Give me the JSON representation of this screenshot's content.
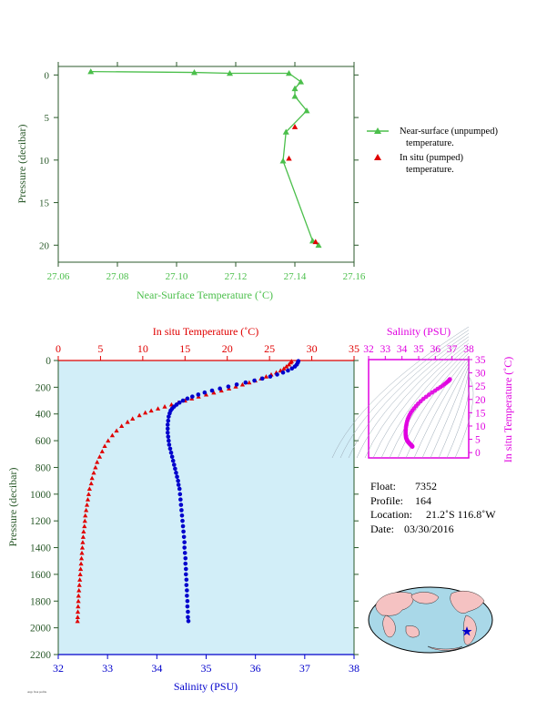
{
  "colors": {
    "green": "#4bbf4b",
    "axis_green": "#2b5a2b",
    "red": "#e00000",
    "blue": "#0000cc",
    "magenta": "#e000e0",
    "panel_bg": "#d2eef8"
  },
  "chart_data": [
    {
      "type": "line",
      "xlabel": "Near-Surface Temperature (˚C)",
      "ylabel": "Pressure (decibar)",
      "xlim": [
        27.06,
        27.16
      ],
      "ylim": [
        22,
        -1
      ],
      "xticks": [
        "27.06",
        "27.08",
        "27.10",
        "27.12",
        "27.14",
        "27.16"
      ],
      "yticks": [
        "0",
        "5",
        "10",
        "15",
        "20"
      ],
      "series": [
        {
          "name": "Near-surface (unpumped) temperature.",
          "marker": "triangle",
          "points": [
            [
              27.071,
              -0.4
            ],
            [
              27.106,
              -0.3
            ],
            [
              27.118,
              -0.2
            ],
            [
              27.138,
              -0.2
            ],
            [
              27.142,
              0.8
            ],
            [
              27.14,
              1.6
            ],
            [
              27.14,
              2.5
            ],
            [
              27.144,
              4.2
            ],
            [
              27.137,
              6.7
            ],
            [
              27.136,
              10.1
            ],
            [
              27.146,
              19.5
            ],
            [
              27.148,
              20.0
            ]
          ]
        },
        {
          "name": "In situ (pumped) temperature.",
          "marker": "triangle",
          "points": [
            [
              27.14,
              6.1
            ],
            [
              27.138,
              9.8
            ],
            [
              27.147,
              19.6
            ]
          ]
        }
      ]
    },
    {
      "type": "scatter",
      "title_top": "In situ Temperature (˚C)",
      "xlabel": "Salinity (PSU)",
      "ylabel": "Pressure (decibar)",
      "temp_lim": [
        0,
        35
      ],
      "sal_lim": [
        32,
        38
      ],
      "ylim": [
        0,
        2200
      ],
      "temp_ticks": [
        "0",
        "5",
        "10",
        "15",
        "20",
        "25",
        "30",
        "35"
      ],
      "sal_ticks": [
        "32",
        "33",
        "34",
        "35",
        "36",
        "37",
        "38"
      ],
      "pressure_ticks": [
        "0",
        "200",
        "400",
        "600",
        "800",
        "1000",
        "1200",
        "1400",
        "1600",
        "1800",
        "2000",
        "2200"
      ],
      "temperature": {
        "name": "In situ Temperature",
        "points": [
          [
            27.6,
            5
          ],
          [
            27.5,
            15
          ],
          [
            27.3,
            30
          ],
          [
            27.0,
            45
          ],
          [
            26.7,
            60
          ],
          [
            26.3,
            75
          ],
          [
            25.8,
            90
          ],
          [
            25.2,
            105
          ],
          [
            24.6,
            120
          ],
          [
            24.0,
            135
          ],
          [
            23.3,
            150
          ],
          [
            22.6,
            165
          ],
          [
            21.8,
            180
          ],
          [
            21.0,
            195
          ],
          [
            20.2,
            210
          ],
          [
            19.3,
            225
          ],
          [
            18.4,
            240
          ],
          [
            17.5,
            255
          ],
          [
            16.6,
            270
          ],
          [
            15.8,
            285
          ],
          [
            15.0,
            300
          ],
          [
            14.2,
            315
          ],
          [
            13.4,
            330
          ],
          [
            12.6,
            345
          ],
          [
            11.8,
            360
          ],
          [
            11.0,
            375
          ],
          [
            10.3,
            390
          ],
          [
            9.6,
            410
          ],
          [
            8.8,
            435
          ],
          [
            8.2,
            460
          ],
          [
            7.5,
            490
          ],
          [
            6.9,
            525
          ],
          [
            6.4,
            560
          ],
          [
            5.9,
            600
          ],
          [
            5.5,
            640
          ],
          [
            5.2,
            680
          ],
          [
            4.9,
            720
          ],
          [
            4.6,
            760
          ],
          [
            4.4,
            800
          ],
          [
            4.2,
            840
          ],
          [
            4.0,
            880
          ],
          [
            3.9,
            920
          ],
          [
            3.7,
            960
          ],
          [
            3.6,
            1000
          ],
          [
            3.5,
            1040
          ],
          [
            3.4,
            1080
          ],
          [
            3.3,
            1120
          ],
          [
            3.2,
            1160
          ],
          [
            3.15,
            1200
          ],
          [
            3.1,
            1240
          ],
          [
            3.0,
            1280
          ],
          [
            2.95,
            1320
          ],
          [
            2.9,
            1360
          ],
          [
            2.85,
            1400
          ],
          [
            2.8,
            1440
          ],
          [
            2.75,
            1480
          ],
          [
            2.7,
            1520
          ],
          [
            2.65,
            1560
          ],
          [
            2.6,
            1600
          ],
          [
            2.55,
            1640
          ],
          [
            2.5,
            1680
          ],
          [
            2.45,
            1720
          ],
          [
            2.4,
            1760
          ],
          [
            2.38,
            1800
          ],
          [
            2.35,
            1840
          ],
          [
            2.32,
            1880
          ],
          [
            2.3,
            1920
          ],
          [
            2.28,
            1950
          ]
        ]
      },
      "salinity": {
        "name": "Salinity",
        "points": [
          [
            36.87,
            5
          ],
          [
            36.86,
            15
          ],
          [
            36.84,
            30
          ],
          [
            36.8,
            45
          ],
          [
            36.74,
            60
          ],
          [
            36.66,
            75
          ],
          [
            36.56,
            90
          ],
          [
            36.44,
            105
          ],
          [
            36.3,
            120
          ],
          [
            36.14,
            135
          ],
          [
            35.98,
            150
          ],
          [
            35.8,
            165
          ],
          [
            35.62,
            180
          ],
          [
            35.45,
            195
          ],
          [
            35.28,
            210
          ],
          [
            35.12,
            225
          ],
          [
            34.97,
            240
          ],
          [
            34.84,
            255
          ],
          [
            34.72,
            270
          ],
          [
            34.62,
            285
          ],
          [
            34.53,
            300
          ],
          [
            34.46,
            315
          ],
          [
            34.4,
            330
          ],
          [
            34.35,
            345
          ],
          [
            34.31,
            360
          ],
          [
            34.28,
            375
          ],
          [
            34.26,
            395
          ],
          [
            34.24,
            420
          ],
          [
            34.23,
            450
          ],
          [
            34.22,
            480
          ],
          [
            34.22,
            510
          ],
          [
            34.22,
            540
          ],
          [
            34.23,
            570
          ],
          [
            34.24,
            600
          ],
          [
            34.25,
            630
          ],
          [
            34.27,
            660
          ],
          [
            34.29,
            690
          ],
          [
            34.31,
            720
          ],
          [
            34.33,
            750
          ],
          [
            34.35,
            780
          ],
          [
            34.37,
            810
          ],
          [
            34.39,
            840
          ],
          [
            34.41,
            870
          ],
          [
            34.43,
            900
          ],
          [
            34.44,
            930
          ],
          [
            34.46,
            960
          ],
          [
            34.47,
            1000
          ],
          [
            34.48,
            1040
          ],
          [
            34.49,
            1080
          ],
          [
            34.5,
            1120
          ],
          [
            34.51,
            1160
          ],
          [
            34.52,
            1200
          ],
          [
            34.53,
            1240
          ],
          [
            34.54,
            1280
          ],
          [
            34.55,
            1320
          ],
          [
            34.56,
            1360
          ],
          [
            34.56,
            1400
          ],
          [
            34.57,
            1440
          ],
          [
            34.58,
            1480
          ],
          [
            34.58,
            1520
          ],
          [
            34.59,
            1560
          ],
          [
            34.59,
            1600
          ],
          [
            34.6,
            1640
          ],
          [
            34.6,
            1680
          ],
          [
            34.61,
            1720
          ],
          [
            34.61,
            1760
          ],
          [
            34.62,
            1800
          ],
          [
            34.62,
            1840
          ],
          [
            34.63,
            1880
          ],
          [
            34.63,
            1920
          ],
          [
            34.64,
            1950
          ]
        ]
      }
    },
    {
      "type": "scatter",
      "xlabel": "Salinity (PSU)",
      "ylabel": "In situ Temperature (˚C)",
      "xlim": [
        32,
        38
      ],
      "ylim": [
        -2,
        35
      ],
      "xticks": [
        "32",
        "33",
        "34",
        "35",
        "36",
        "37",
        "38"
      ],
      "yticks": [
        "0",
        "5",
        "10",
        "15",
        "20",
        "25",
        "30",
        "35"
      ]
    }
  ],
  "info": {
    "float_label": "Float:",
    "float_value": "7352",
    "profile_label": "Profile:",
    "profile_value": "164",
    "location_label": "Location:",
    "location_value": "21.2˚S  116.8˚W",
    "date_label": "Date:",
    "date_value": "03/30/2016"
  },
  "map": {
    "marker": "star",
    "lat": -21.2,
    "lon": -116.8
  },
  "footnote": "Argo float profile"
}
